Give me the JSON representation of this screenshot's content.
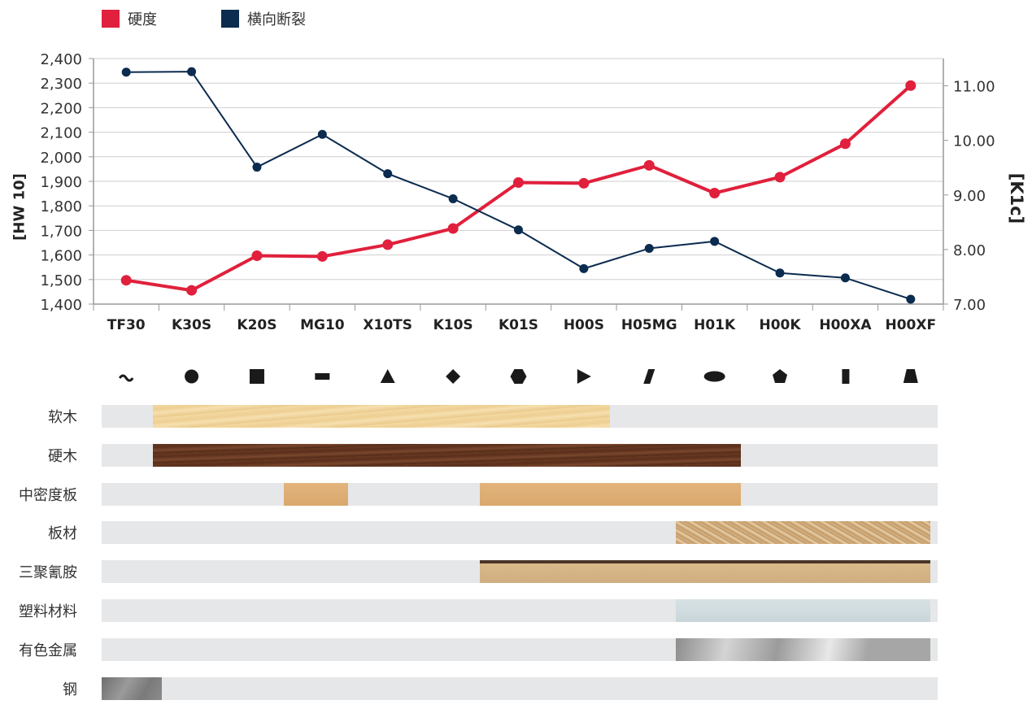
{
  "legend": [
    {
      "label": "硬度",
      "color": "#e0203c"
    },
    {
      "label": "横向断裂",
      "color": "#0b2b4f"
    }
  ],
  "chart_data": {
    "type": "line",
    "categories": [
      "TF30",
      "K30S",
      "K20S",
      "MG10",
      "X10TS",
      "K10S",
      "K01S",
      "H00S",
      "H05MG",
      "H01K",
      "H00K",
      "H00XA",
      "H00XF"
    ],
    "series": [
      {
        "name": "硬度",
        "axis": "left",
        "color": "#e0203c",
        "values": [
          1497,
          1456,
          1597,
          1594,
          1642,
          1708,
          1895,
          1892,
          1965,
          1852,
          1917,
          2053,
          2290
        ]
      },
      {
        "name": "横向断裂",
        "axis": "right",
        "color": "#0b2b4f",
        "values": [
          11.25,
          11.26,
          9.51,
          10.11,
          9.39,
          8.93,
          8.36,
          7.65,
          8.02,
          8.15,
          7.57,
          7.48,
          7.09
        ]
      }
    ],
    "ylabel_left": "[HW 10]",
    "ylabel_right": "[K1c]",
    "ylim_left": [
      1400,
      2400
    ],
    "ylim_right": [
      7.0,
      11.5
    ],
    "yticks_left": [
      "1,400",
      "1,500",
      "1,600",
      "1,700",
      "1,800",
      "1,900",
      "2,000",
      "2,100",
      "2,200",
      "2,300",
      "2,400"
    ],
    "yticks_right": [
      "7.00",
      "8.00",
      "9.00",
      "10.00",
      "11.00"
    ],
    "grid": true,
    "legend_position": "top-left"
  },
  "symbols": [
    "tilde",
    "circle",
    "square",
    "dash",
    "triangle",
    "diamond",
    "hexagon",
    "play",
    "slash",
    "ellipse",
    "pentagon",
    "bar",
    "trapezoid"
  ],
  "materials": [
    {
      "label": "软木",
      "texture": "softwood",
      "ranges": [
        [
          0.9,
          7.9
        ]
      ]
    },
    {
      "label": "硬木",
      "texture": "hardwood",
      "ranges": [
        [
          0.9,
          9.9
        ]
      ]
    },
    {
      "label": "中密度板",
      "texture": "mdf",
      "ranges": [
        [
          2.9,
          3.9
        ],
        [
          5.9,
          9.9
        ]
      ]
    },
    {
      "label": "板材",
      "texture": "board",
      "ranges": [
        [
          8.9,
          12.8
        ]
      ]
    },
    {
      "label": "三聚氰胺",
      "texture": "melamine",
      "ranges": [
        [
          5.9,
          12.8
        ]
      ]
    },
    {
      "label": "塑料材料",
      "texture": "plastic",
      "ranges": [
        [
          8.9,
          12.8
        ]
      ]
    },
    {
      "label": "有色金属",
      "texture": "metal",
      "ranges": [
        [
          8.9,
          12.8
        ]
      ]
    },
    {
      "label": "钢",
      "texture": "steel",
      "ranges": [
        [
          0,
          1.04
        ]
      ]
    }
  ]
}
